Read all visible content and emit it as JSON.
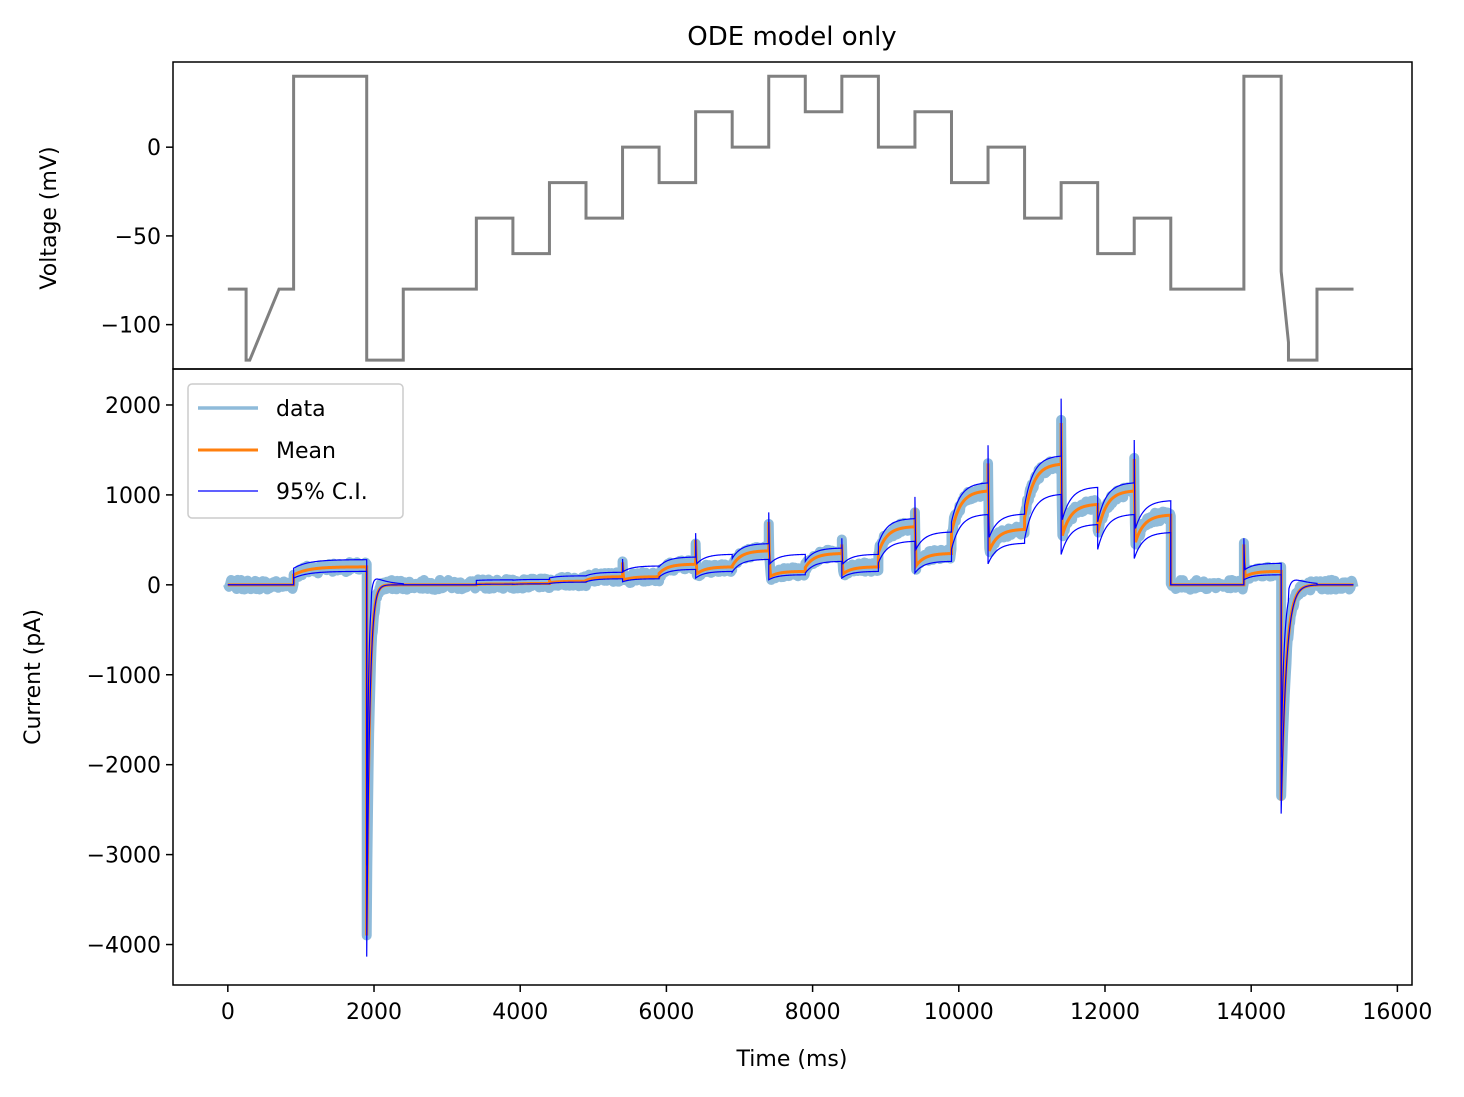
{
  "chart_data": [
    {
      "type": "line",
      "title": "ODE model only",
      "xlabel": "",
      "ylabel": "Voltage (mV)",
      "xlim": [
        -750,
        16200
      ],
      "ylim": [
        -125,
        48
      ],
      "yticks": [
        0,
        -50,
        -100
      ],
      "ytick_labels": [
        "0",
        "−50",
        "−100"
      ],
      "series": [
        {
          "color": "#808080",
          "x": [
            0,
            250,
            250,
            300,
            700,
            900,
            900,
            1900,
            1900,
            2400,
            2400,
            3400,
            3400,
            3900,
            3900,
            4400,
            4400,
            4900,
            4900,
            5400,
            5400,
            5900,
            5900,
            6400,
            6400,
            6900,
            6900,
            7400,
            7400,
            7900,
            7900,
            8400,
            8400,
            8900,
            8900,
            9400,
            9400,
            9900,
            9900,
            10400,
            10400,
            10900,
            10900,
            11400,
            11400,
            11900,
            11900,
            12400,
            12400,
            12900,
            12900,
            13900,
            13900,
            14410,
            14410,
            14510,
            14510,
            14900,
            14900,
            15400
          ],
          "y": [
            -80,
            -80,
            -120,
            -120,
            -80,
            -80,
            40,
            40,
            -120,
            -120,
            -80,
            -80,
            -40,
            -40,
            -60,
            -60,
            -20,
            -20,
            -40,
            -40,
            0,
            0,
            -20,
            -20,
            20,
            20,
            0,
            0,
            40,
            40,
            20,
            20,
            40,
            40,
            0,
            0,
            20,
            20,
            -20,
            -20,
            0,
            0,
            -40,
            -40,
            -20,
            -20,
            -60,
            -60,
            -40,
            -40,
            -80,
            -80,
            40,
            40,
            -70,
            -110,
            -120,
            -120,
            -80,
            -80
          ]
        }
      ]
    },
    {
      "type": "line",
      "xlabel": "Time (ms)",
      "ylabel": "Current (pA)",
      "xlim": [
        -750,
        16200
      ],
      "ylim": [
        -4450,
        2400
      ],
      "xticks": [
        0,
        2000,
        4000,
        6000,
        8000,
        10000,
        12000,
        14000,
        16000
      ],
      "xtick_labels": [
        "0",
        "2000",
        "4000",
        "6000",
        "8000",
        "10000",
        "12000",
        "14000",
        "16000"
      ],
      "yticks": [
        2000,
        1000,
        0,
        -1000,
        -2000,
        -3000,
        -4000
      ],
      "ytick_labels": [
        "2000",
        "1000",
        "0",
        "−1000",
        "−2000",
        "−3000",
        "−4000"
      ],
      "legend": {
        "position": "top-left"
      },
      "series": [
        {
          "name": "data",
          "color": "#8fbbda"
        },
        {
          "name": "Mean",
          "color": "#ff7f0e"
        },
        {
          "name": "95% C.I.",
          "color": "#0000ff"
        }
      ],
      "segments": [
        {
          "t0": 0,
          "t1": 900,
          "v": [
            0,
            0,
            0
          ]
        },
        {
          "t0": 900,
          "t1": 1900,
          "v": [
            0,
            200,
            240
          ],
          "spike": 0,
          "tau": 200
        },
        {
          "t0": 1900,
          "t1": 2400,
          "v": [
            -3900,
            0,
            0
          ],
          "tau": 40
        },
        {
          "t0": 2400,
          "t1": 3400,
          "v": [
            0,
            0,
            0
          ]
        },
        {
          "t0": 3400,
          "t1": 3900,
          "v": [
            0,
            10,
            15
          ]
        },
        {
          "t0": 3900,
          "t1": 4400,
          "v": [
            0,
            15,
            20
          ]
        },
        {
          "t0": 4400,
          "t1": 4900,
          "v": [
            0,
            40,
            60
          ],
          "spike": 60
        },
        {
          "t0": 4900,
          "t1": 5400,
          "v": [
            80,
            90,
            100
          ]
        },
        {
          "t0": 5400,
          "t1": 5900,
          "v": [
            0,
            90,
            170
          ],
          "spike": 250
        },
        {
          "t0": 5900,
          "t1": 6400,
          "v": [
            150,
            230,
            270
          ]
        },
        {
          "t0": 6400,
          "t1": 6900,
          "v": [
            0,
            200,
            300
          ],
          "spike": 500
        },
        {
          "t0": 6900,
          "t1": 7400,
          "v": [
            300,
            380,
            420
          ]
        },
        {
          "t0": 7400,
          "t1": 7900,
          "v": [
            0,
            150,
            300
          ],
          "spike": 700
        },
        {
          "t0": 7900,
          "t1": 8400,
          "v": [
            330,
            350,
            370
          ]
        },
        {
          "t0": 8400,
          "t1": 8900,
          "v": [
            0,
            200,
            300
          ],
          "spike": 450
        },
        {
          "t0": 8900,
          "t1": 9400,
          "v": [
            600,
            650,
            700
          ]
        },
        {
          "t0": 9400,
          "t1": 9900,
          "v": [
            0,
            350,
            550
          ],
          "spike": 850
        },
        {
          "t0": 9900,
          "t1": 10400,
          "v": [
            1000,
            1050,
            1100
          ]
        },
        {
          "t0": 10400,
          "t1": 10900,
          "v": [
            0,
            620,
            750
          ],
          "spike": 1350
        },
        {
          "t0": 10900,
          "t1": 11400,
          "v": [
            1300,
            1350,
            1400
          ]
        },
        {
          "t0": 11400,
          "t1": 11900,
          "v": [
            700,
            900,
            1050
          ],
          "spike": 1800
        },
        {
          "t0": 11900,
          "t1": 12400,
          "v": [
            1000,
            1050,
            1100
          ]
        },
        {
          "t0": 12400,
          "t1": 12900,
          "v": [
            650,
            780,
            900
          ],
          "spike": 1400
        },
        {
          "t0": 12900,
          "t1": 13900,
          "v": [
            0,
            0,
            0
          ]
        },
        {
          "t0": 13900,
          "t1": 14410,
          "v": [
            0,
            150,
            200
          ],
          "spike": 450
        },
        {
          "t0": 14410,
          "t1": 14900,
          "v": [
            -2400,
            0,
            0
          ],
          "tau": 70
        },
        {
          "t0": 14900,
          "t1": 15400,
          "v": [
            0,
            0,
            0
          ]
        }
      ]
    }
  ]
}
